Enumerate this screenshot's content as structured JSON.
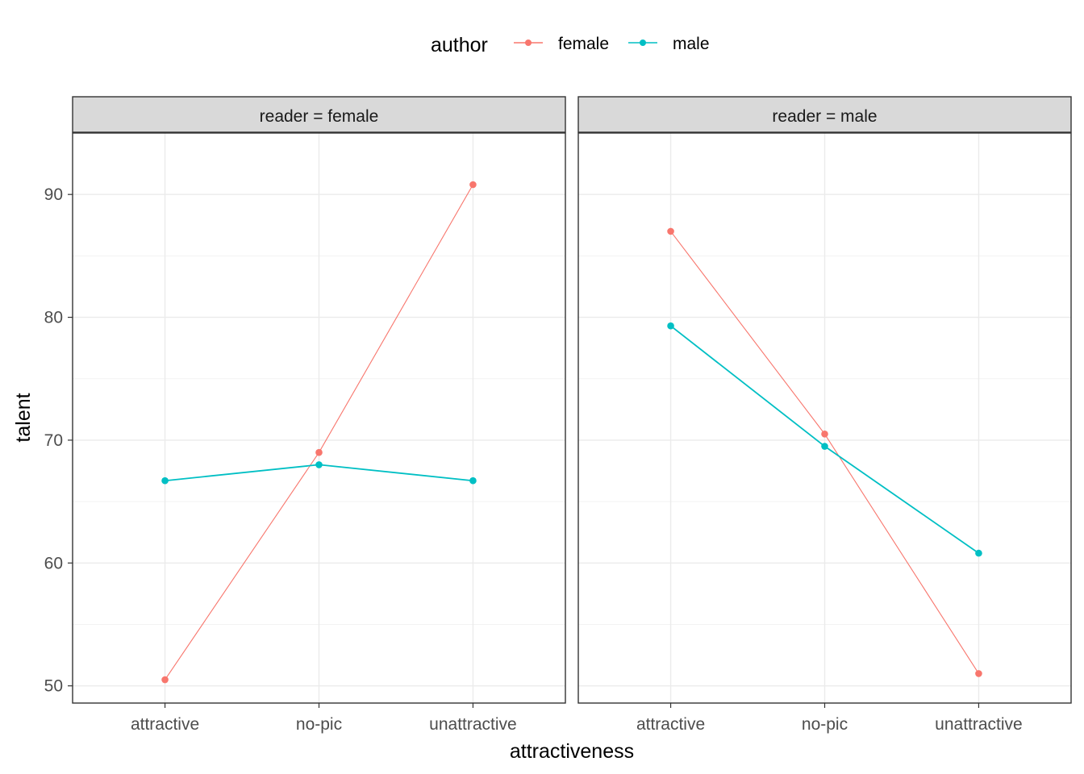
{
  "chart_data": {
    "type": "line",
    "facet_var": "reader",
    "x_title": "attractiveness",
    "y_title": "talent",
    "categories": [
      "attractive",
      "no-pic",
      "unattractive"
    ],
    "ylim": [
      48.6,
      95.0
    ],
    "y_breaks": [
      50,
      60,
      70,
      80,
      90
    ],
    "grid": true,
    "legend": {
      "title": "author",
      "position": "top",
      "entries": [
        {
          "name": "female",
          "color": "#F8766D"
        },
        {
          "name": "male",
          "color": "#00BFC4"
        }
      ]
    },
    "panels": [
      {
        "strip": "reader = female",
        "series": [
          {
            "name": "female",
            "color": "#F8766D",
            "values": [
              50.5,
              69.0,
              90.8
            ]
          },
          {
            "name": "male",
            "color": "#00BFC4",
            "values": [
              66.7,
              68.0,
              66.7
            ]
          }
        ]
      },
      {
        "strip": "reader = male",
        "series": [
          {
            "name": "female",
            "color": "#F8766D",
            "values": [
              87.0,
              70.5,
              51.0
            ]
          },
          {
            "name": "male",
            "color": "#00BFC4",
            "values": [
              79.3,
              69.5,
              60.8
            ]
          }
        ]
      }
    ]
  }
}
